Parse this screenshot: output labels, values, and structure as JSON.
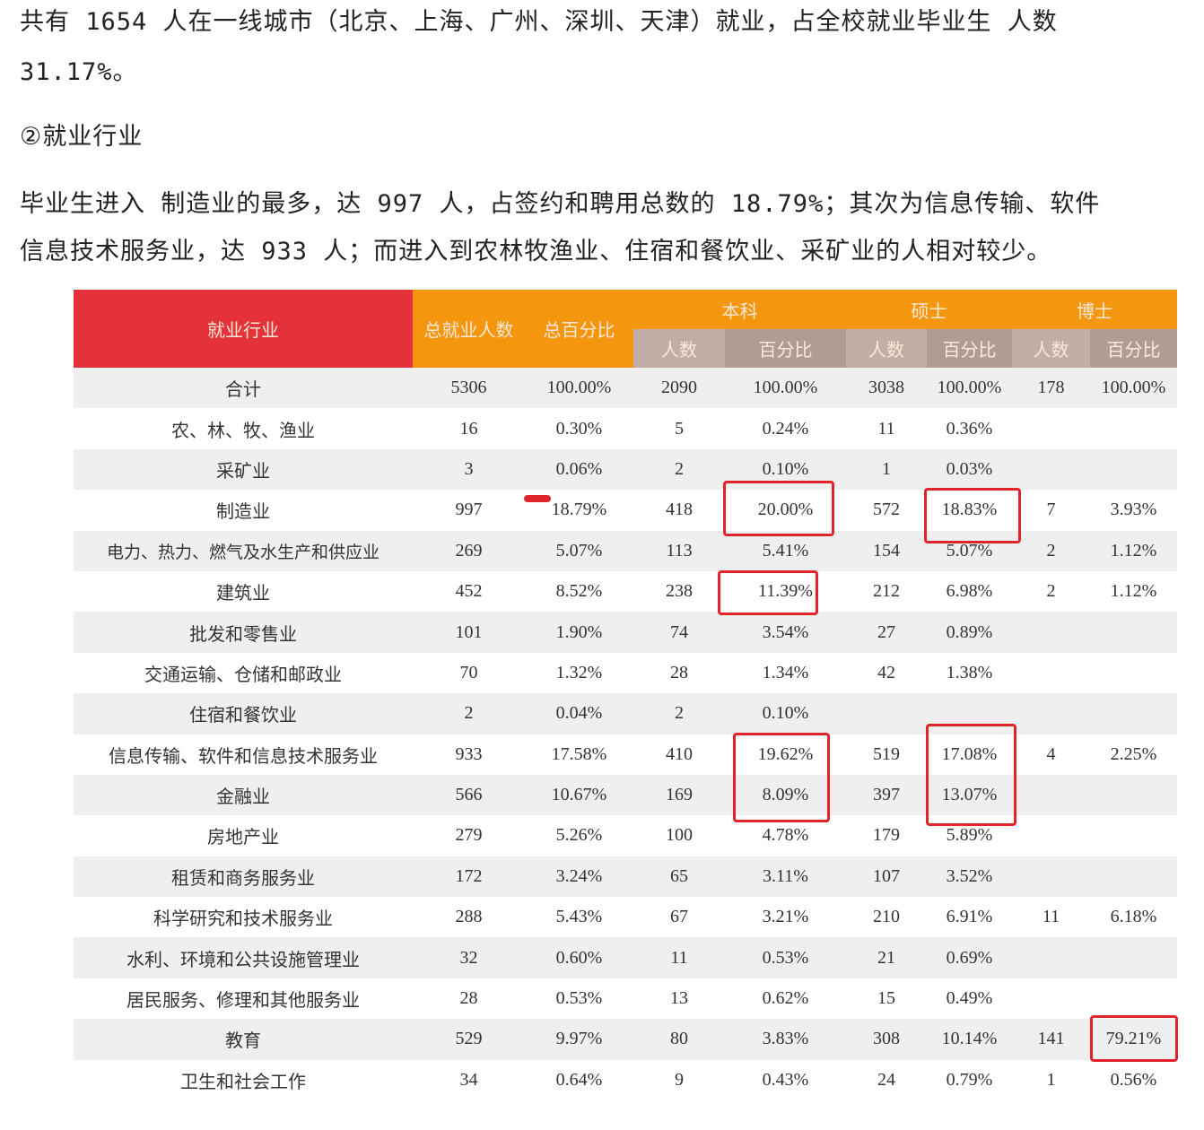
{
  "paragraphs": [
    "共有 1654 人在一线城市（北京、上海、广州、深圳、天津）就业，占全校就业毕业生 人数",
    "31.17%。",
    "②就业行业",
    "毕业生进入 制造业的最多，达 997 人，占签约和聘用总数的 18.79%；其次为信息传输、软件",
    "信息技术服务业，达 933 人；而进入到农林牧渔业、住宿和餐饮业、采矿业的人相对较少。"
  ],
  "colors": {
    "header_red": "#e5323a",
    "header_orange": "#f5960f",
    "subheader": "#b8a39c",
    "highlight_box": "#e0242c"
  },
  "table": {
    "headers": {
      "industry": "就业行业",
      "total": "总就业人数",
      "total_pct": "总百分比",
      "bachelor": "本科",
      "master": "硕士",
      "doctor": "博士",
      "count": "人数",
      "pct": "百分比"
    },
    "rows": [
      [
        "合计",
        "5306",
        "100.00%",
        "2090",
        "100.00%",
        "3038",
        "100.00%",
        "178",
        "100.00%"
      ],
      [
        "农、林、牧、渔业",
        "16",
        "0.30%",
        "5",
        "0.24%",
        "11",
        "0.36%",
        "",
        ""
      ],
      [
        "采矿业",
        "3",
        "0.06%",
        "2",
        "0.10%",
        "1",
        "0.03%",
        "",
        ""
      ],
      [
        "制造业",
        "997",
        "18.79%",
        "418",
        "20.00%",
        "572",
        "18.83%",
        "7",
        "3.93%"
      ],
      [
        "电力、热力、燃气及水生产和供应业",
        "269",
        "5.07%",
        "113",
        "5.41%",
        "154",
        "5.07%",
        "2",
        "1.12%"
      ],
      [
        "建筑业",
        "452",
        "8.52%",
        "238",
        "11.39%",
        "212",
        "6.98%",
        "2",
        "1.12%"
      ],
      [
        "批发和零售业",
        "101",
        "1.90%",
        "74",
        "3.54%",
        "27",
        "0.89%",
        "",
        ""
      ],
      [
        "交通运输、仓储和邮政业",
        "70",
        "1.32%",
        "28",
        "1.34%",
        "42",
        "1.38%",
        "",
        ""
      ],
      [
        "住宿和餐饮业",
        "2",
        "0.04%",
        "2",
        "0.10%",
        "",
        "",
        "",
        ""
      ],
      [
        "信息传输、软件和信息技术服务业",
        "933",
        "17.58%",
        "410",
        "19.62%",
        "519",
        "17.08%",
        "4",
        "2.25%"
      ],
      [
        "金融业",
        "566",
        "10.67%",
        "169",
        "8.09%",
        "397",
        "13.07%",
        "",
        ""
      ],
      [
        "房地产业",
        "279",
        "5.26%",
        "100",
        "4.78%",
        "179",
        "5.89%",
        "",
        ""
      ],
      [
        "租赁和商务服务业",
        "172",
        "3.24%",
        "65",
        "3.11%",
        "107",
        "3.52%",
        "",
        ""
      ],
      [
        "科学研究和技术服务业",
        "288",
        "5.43%",
        "67",
        "3.21%",
        "210",
        "6.91%",
        "11",
        "6.18%"
      ],
      [
        "水利、环境和公共设施管理业",
        "32",
        "0.60%",
        "11",
        "0.53%",
        "21",
        "0.69%",
        "",
        ""
      ],
      [
        "居民服务、修理和其他服务业",
        "28",
        "0.53%",
        "13",
        "0.62%",
        "15",
        "0.49%",
        "",
        ""
      ],
      [
        "教育",
        "529",
        "9.97%",
        "80",
        "3.83%",
        "308",
        "10.14%",
        "141",
        "79.21%"
      ],
      [
        "卫生和社会工作",
        "34",
        "0.64%",
        "9",
        "0.43%",
        "24",
        "0.79%",
        "1",
        "0.56%"
      ]
    ]
  }
}
